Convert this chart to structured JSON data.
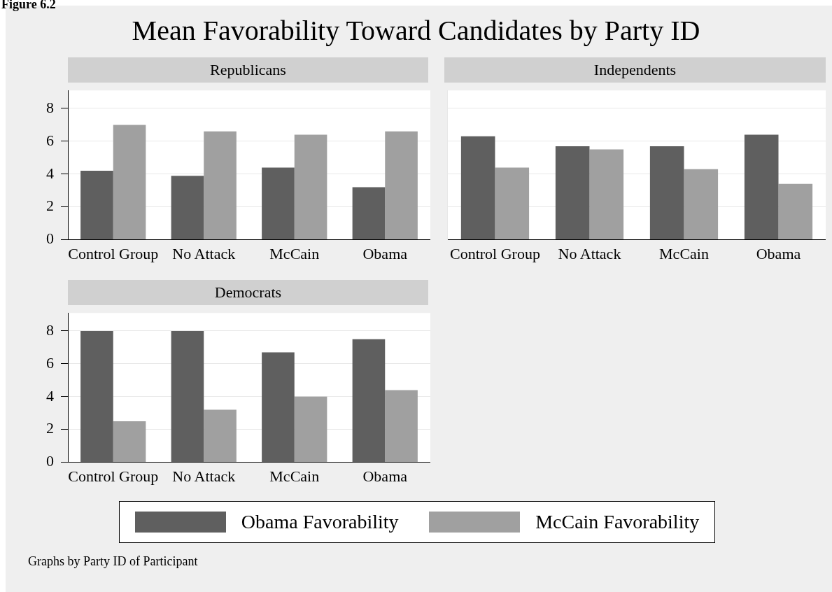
{
  "chart_data": [
    {
      "type": "other",
      "title": "Mean Favorability Toward Candidates by Party ID",
      "annotations": [
        "Figure 6.2",
        "Graphs by Party ID of Participant"
      ]
    },
    {
      "type": "bar",
      "title": "Republicans",
      "categories": [
        "Control Group",
        "No Attack",
        "McCain",
        "Obama"
      ],
      "series": [
        {
          "name": "Obama Favorability",
          "color": "#5f5f5f",
          "values": [
            4.2,
            3.9,
            4.4,
            3.2
          ]
        },
        {
          "name": "McCain Favorability",
          "color": "#a0a0a0",
          "values": [
            7.0,
            6.6,
            6.4,
            6.6
          ]
        }
      ],
      "ylim": [
        0,
        9.1
      ],
      "yticks": [
        0,
        2,
        4,
        6,
        8
      ],
      "grid": "y",
      "legend": "bottom"
    },
    {
      "type": "bar",
      "title": "Independents",
      "categories": [
        "Control Group",
        "No Attack",
        "McCain",
        "Obama"
      ],
      "series": [
        {
          "color": "#5f5f5f",
          "values": [
            6.3,
            5.7,
            5.7,
            6.4
          ]
        },
        {
          "color": "#a0a0a0",
          "values": [
            4.4,
            5.5,
            4.3,
            3.4
          ]
        }
      ],
      "ylim": [
        0,
        9.1
      ],
      "yticks": [
        0,
        2,
        4,
        6,
        8
      ],
      "grid": "y",
      "tick_labels": "x"
    },
    {
      "type": "bar",
      "title": "Democrats",
      "categories": [
        "Control Group",
        "No Attack",
        "McCain",
        "Obama"
      ],
      "series": [
        {
          "color": "#5f5f5f",
          "values": [
            8.0,
            8.0,
            6.7,
            7.5
          ]
        },
        {
          "color": "#a0a0a0",
          "values": [
            2.5,
            3.2,
            4.0,
            4.4
          ]
        }
      ],
      "ylim": [
        0,
        9.1
      ],
      "yticks": [
        0,
        2,
        4,
        6,
        8
      ],
      "grid": "y"
    }
  ]
}
